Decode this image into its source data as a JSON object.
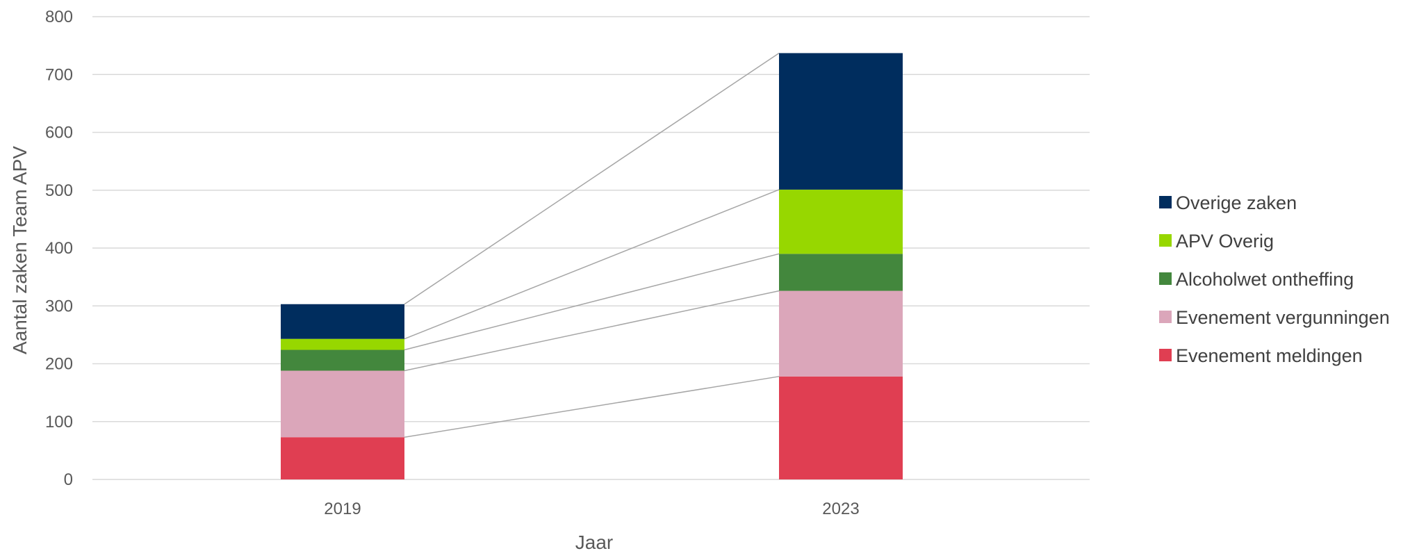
{
  "chart_data": {
    "type": "bar",
    "stacked": true,
    "categories": [
      "2019",
      "2023"
    ],
    "series": [
      {
        "name": "Evenement meldingen",
        "color": "#E03E52",
        "values": [
          73,
          178
        ]
      },
      {
        "name": "Evenement vergunningen",
        "color": "#DBA6BA",
        "values": [
          115,
          148
        ]
      },
      {
        "name": "Alcoholwet ontheffing",
        "color": "#43873D",
        "values": [
          36,
          64
        ]
      },
      {
        "name": "APV Overig",
        "color": "#97D700",
        "values": [
          19,
          111
        ]
      },
      {
        "name": "Overige zaken",
        "color": "#002D5E",
        "values": [
          60,
          236
        ]
      }
    ],
    "series_lines": true,
    "xlabel": "Jaar",
    "ylabel": "Aantal zaken Team APV",
    "ylim": [
      0,
      800
    ],
    "yticks": [
      0,
      100,
      200,
      300,
      400,
      500,
      600,
      700,
      800
    ],
    "grid": true,
    "legend_position": "right",
    "legend_order": [
      "Overige zaken",
      "APV Overig",
      "Alcoholwet ontheffing",
      "Evenement vergunningen",
      "Evenement meldingen"
    ]
  }
}
